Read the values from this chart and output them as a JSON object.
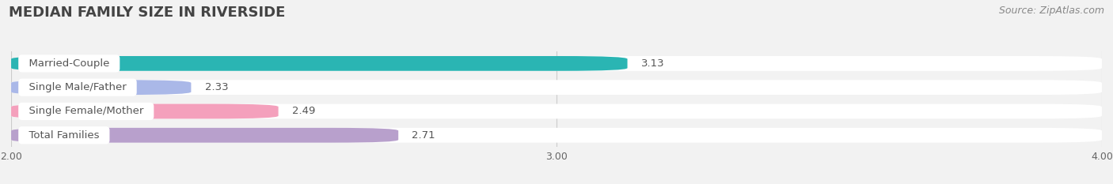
{
  "title": "MEDIAN FAMILY SIZE IN RIVERSIDE",
  "source": "Source: ZipAtlas.com",
  "categories": [
    "Married-Couple",
    "Single Male/Father",
    "Single Female/Mother",
    "Total Families"
  ],
  "values": [
    3.13,
    2.33,
    2.49,
    2.71
  ],
  "bar_colors": [
    "#2ab5b3",
    "#aab8e8",
    "#f4a0bc",
    "#b8a0cc"
  ],
  "xlim": [
    2.0,
    4.0
  ],
  "xticks": [
    2.0,
    3.0,
    4.0
  ],
  "xtick_labels": [
    "2.00",
    "3.00",
    "4.00"
  ],
  "bar_height": 0.62,
  "background_color": "#f2f2f2",
  "bar_bg_color": "#e8e8e8",
  "title_fontsize": 13,
  "label_fontsize": 9.5,
  "value_fontsize": 9.5,
  "source_fontsize": 9
}
